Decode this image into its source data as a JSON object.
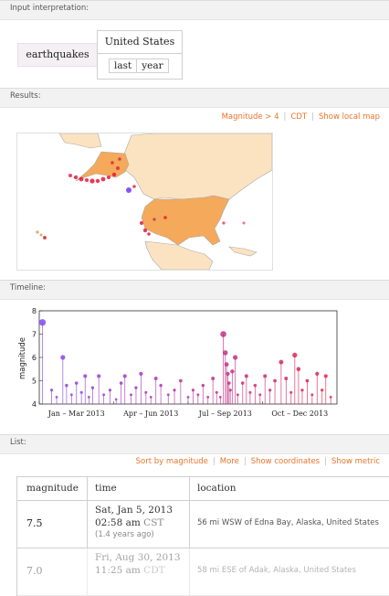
{
  "sections": {
    "input": "Input interpretation:",
    "results": "Results:",
    "timeline": "Timeline:",
    "list": "List:"
  },
  "interpretation": {
    "word": "earthquakes",
    "region": "United States",
    "time_a": "last",
    "time_b": "year"
  },
  "results_links": [
    "Magnitude > 4",
    "CDT",
    "Show local map"
  ],
  "list_links": [
    "Sort by magnitude",
    "More",
    "Show coordinates",
    "Show metric"
  ],
  "colors": {
    "accent_link": "#e8742a",
    "land_us": "#f5a95a",
    "land_other": "#fbe3c2",
    "quake_red": "#e8163a",
    "quake_purple": "#7b3ff2"
  },
  "table": {
    "headers": [
      "magnitude",
      "time",
      "location"
    ],
    "rows": [
      {
        "magnitude": "7.5",
        "date": "Sat, Jan 5, 2013",
        "time": "02:58 am",
        "tz": "CST",
        "ago": "(1.4 years ago)",
        "location": "56 mi WSW of Edna Bay, Alaska, United States"
      },
      {
        "magnitude": "7.0",
        "date": "Fri, Aug 30, 2013",
        "time": "11:25 am",
        "tz": "CDT",
        "ago": "",
        "location": "58 mi ESE of Adak, Alaska, United States"
      }
    ]
  },
  "chart_data": {
    "type": "scatter",
    "title": "",
    "xlabel": "",
    "ylabel": "magnitude",
    "ylim": [
      4,
      8
    ],
    "yticks": [
      4,
      5,
      6,
      7,
      8
    ],
    "x_tick_labels": [
      "Jan – Mar 2013",
      "Apr – Jun 2013",
      "Jul – Sep 2013",
      "Oct – Dec 2013"
    ],
    "x_unit": "month of 2013 (0 = Jan 1, 12 = Dec 31)",
    "xlim": [
      0,
      12
    ],
    "grid": false,
    "legend": "none",
    "points": [
      [
        0.13,
        7.5
      ],
      [
        0.5,
        4.6
      ],
      [
        0.7,
        4.3
      ],
      [
        0.95,
        6.0
      ],
      [
        1.1,
        4.8
      ],
      [
        1.3,
        4.4
      ],
      [
        1.5,
        4.9
      ],
      [
        1.7,
        4.5
      ],
      [
        1.85,
        5.2
      ],
      [
        2.0,
        4.3
      ],
      [
        2.15,
        4.7
      ],
      [
        2.4,
        5.2
      ],
      [
        2.6,
        4.4
      ],
      [
        2.85,
        4.6
      ],
      [
        3.1,
        4.2
      ],
      [
        3.3,
        4.9
      ],
      [
        3.45,
        5.2
      ],
      [
        3.7,
        4.4
      ],
      [
        3.9,
        4.7
      ],
      [
        4.1,
        5.3
      ],
      [
        4.3,
        4.5
      ],
      [
        4.5,
        4.3
      ],
      [
        4.7,
        5.1
      ],
      [
        4.9,
        4.8
      ],
      [
        5.2,
        4.4
      ],
      [
        5.45,
        4.6
      ],
      [
        5.7,
        5.0
      ],
      [
        6.0,
        4.3
      ],
      [
        6.2,
        4.6
      ],
      [
        6.4,
        4.4
      ],
      [
        6.6,
        4.8
      ],
      [
        6.8,
        4.3
      ],
      [
        7.0,
        5.1
      ],
      [
        7.15,
        4.5
      ],
      [
        7.3,
        4.3
      ],
      [
        7.42,
        7.0
      ],
      [
        7.5,
        6.2
      ],
      [
        7.55,
        5.7
      ],
      [
        7.6,
        5.3
      ],
      [
        7.65,
        4.9
      ],
      [
        7.7,
        4.6
      ],
      [
        7.78,
        5.4
      ],
      [
        7.9,
        6.0
      ],
      [
        8.0,
        4.4
      ],
      [
        8.2,
        4.9
      ],
      [
        8.35,
        5.2
      ],
      [
        8.5,
        4.5
      ],
      [
        8.7,
        4.8
      ],
      [
        8.9,
        4.4
      ],
      [
        9.1,
        5.2
      ],
      [
        9.3,
        4.6
      ],
      [
        9.5,
        5.0
      ],
      [
        9.75,
        5.8
      ],
      [
        9.95,
        5.1
      ],
      [
        10.15,
        4.5
      ],
      [
        10.3,
        6.1
      ],
      [
        10.45,
        5.5
      ],
      [
        10.6,
        4.6
      ],
      [
        10.8,
        5.0
      ],
      [
        11.0,
        4.4
      ],
      [
        11.2,
        5.3
      ],
      [
        11.4,
        4.6
      ],
      [
        11.55,
        5.2
      ],
      [
        11.75,
        4.3
      ]
    ]
  }
}
